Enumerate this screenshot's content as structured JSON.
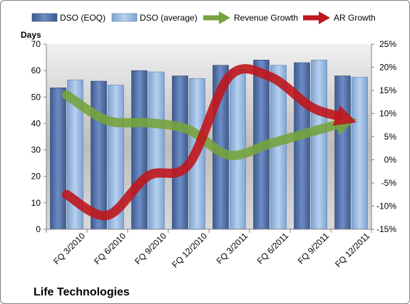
{
  "chart_data": {
    "type": "bar",
    "title": "Life Technologies",
    "ylabel": "Days",
    "y2label": "",
    "categories": [
      "FQ 3/2010",
      "FQ 6/2010",
      "FQ 9/2010",
      "FQ 12/2010",
      "FQ 3/2011",
      "FQ 6/2011",
      "FQ 9/2011",
      "FQ 12/2011"
    ],
    "ylim": [
      0,
      70
    ],
    "yticks": [
      0,
      10,
      20,
      30,
      40,
      50,
      60,
      70
    ],
    "y2lim": [
      -15,
      25
    ],
    "y2ticks": [
      "-15%",
      "-10%",
      "-5%",
      "0%",
      "5%",
      "10%",
      "15%",
      "20%",
      "25%"
    ],
    "y2tick_values": [
      -15,
      -10,
      -5,
      0,
      5,
      10,
      15,
      20,
      25
    ],
    "legend_position": "top",
    "grid": false,
    "series": [
      {
        "name": "DSO (EOQ)",
        "kind": "bar",
        "axis": "left",
        "color": "#4f6fa8",
        "values": [
          53.5,
          56,
          60,
          58,
          62,
          64,
          63,
          58
        ]
      },
      {
        "name": "DSO (average)",
        "kind": "bar",
        "axis": "left",
        "color": "#8fb3e0",
        "values": [
          56.5,
          54.5,
          59.5,
          57,
          60.5,
          62,
          64,
          57.5
        ]
      },
      {
        "name": "Revenue Growth",
        "kind": "line",
        "axis": "right",
        "color": "#77a33e",
        "values": [
          14,
          8.5,
          8,
          6.5,
          1,
          3.5,
          6,
          8.5
        ]
      },
      {
        "name": "AR Growth",
        "kind": "line",
        "axis": "right",
        "color": "#c0161c",
        "values": [
          -7.5,
          -12,
          -3.5,
          -1,
          18,
          18,
          11.5,
          8.5
        ]
      }
    ]
  }
}
